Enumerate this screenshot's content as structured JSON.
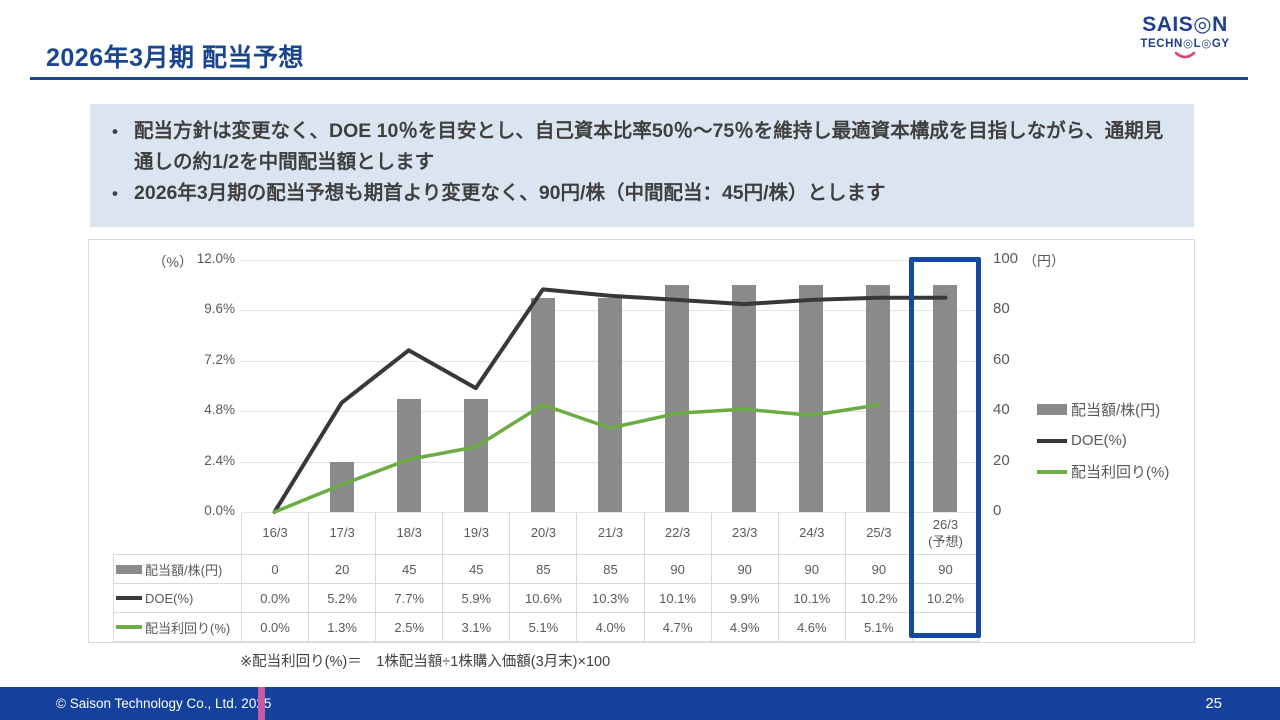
{
  "header": {
    "title": "2026年3月期 配当予想",
    "logo_line1": "SAIS◎N",
    "logo_line2": "TECHN◎L◎GY"
  },
  "summary": {
    "bullet_marker": "•",
    "bullets": [
      "配当方針は変更なく、DOE 10％を目安とし、自己資本比率50％～75％を維持し最適資本構成を目指しながら、通期見通しの約1/2を中間配当額とします",
      "2026年3月期の配当予想も期首より変更なく、90円/株（中間配当：45円/株）とします"
    ]
  },
  "chart_data": {
    "type": "bar",
    "subtype": "combo-bar-line-dual-axis",
    "categories": [
      "16/3",
      "17/3",
      "18/3",
      "19/3",
      "20/3",
      "21/3",
      "22/3",
      "23/3",
      "24/3",
      "25/3",
      "26/3\n(予想)"
    ],
    "series": [
      {
        "name": "配当額/株(円)",
        "type": "bar",
        "axis": "right",
        "color": "#8A8A8A",
        "values": [
          0,
          20,
          45,
          45,
          85,
          85,
          90,
          90,
          90,
          90,
          90
        ],
        "display": [
          "0",
          "20",
          "45",
          "45",
          "85",
          "85",
          "90",
          "90",
          "90",
          "90",
          "90"
        ]
      },
      {
        "name": "DOE(%)",
        "type": "line",
        "axis": "left",
        "color": "#383838",
        "values": [
          0.0,
          5.2,
          7.7,
          5.9,
          10.6,
          10.3,
          10.1,
          9.9,
          10.1,
          10.2,
          10.2
        ],
        "display": [
          "0.0%",
          "5.2%",
          "7.7%",
          "5.9%",
          "10.6%",
          "10.3%",
          "10.1%",
          "9.9%",
          "10.1%",
          "10.2%",
          "10.2%"
        ]
      },
      {
        "name": "配当利回り(%)",
        "type": "line",
        "axis": "left",
        "color": "#6CAC45",
        "values": [
          0.0,
          1.3,
          2.5,
          3.1,
          5.1,
          4.0,
          4.7,
          4.9,
          4.6,
          5.1,
          null
        ],
        "display": [
          "0.0%",
          "1.3%",
          "2.5%",
          "3.1%",
          "5.1%",
          "4.0%",
          "4.7%",
          "4.9%",
          "4.6%",
          "5.1%",
          ""
        ]
      }
    ],
    "left_axis": {
      "unit": "（%）",
      "min": 0,
      "max": 12,
      "ticks": [
        "12.0%",
        "9.6%",
        "7.2%",
        "4.8%",
        "2.4%",
        "0.0%"
      ]
    },
    "right_axis": {
      "unit": "（円）",
      "min": 0,
      "max": 100,
      "ticks": [
        "100",
        "80",
        "60",
        "40",
        "20",
        "0"
      ]
    },
    "legend_position": "right",
    "grid": true,
    "highlighted_category": "26/3\n(予想)"
  },
  "footnote": "※配当利回り(%)＝　1株配当額÷1株購入価額(3月末)×100",
  "footer": {
    "copyright": "© Saison Technology Co., Ltd. 2025",
    "page_number": "25"
  },
  "colors": {
    "accent_blue": "#1A468F",
    "footer_blue": "#14419B",
    "highlight_box_blue": "#174A9E",
    "footer_pink": "#C95BA5",
    "summary_bg": "#DBE5F1",
    "bar_gray": "#8A8A8A",
    "line_black": "#383838",
    "line_green": "#6CAC45"
  }
}
